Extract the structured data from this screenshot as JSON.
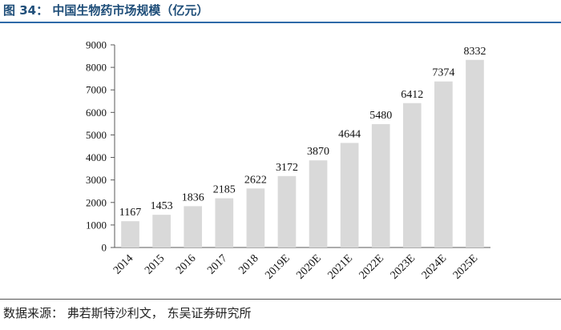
{
  "header": {
    "title": "图 34：  中国生物药市场规模（亿元）"
  },
  "footer": {
    "source": "数据来源：  弗若斯特沙利文， 东吴证券研究所"
  },
  "colors": {
    "bar": "#d9d9d9",
    "title": "#1f4e79",
    "axis": "#595959"
  },
  "chart_data": {
    "type": "bar",
    "title": "中国生物药市场规模（亿元）",
    "categories": [
      "2014",
      "2015",
      "2016",
      "2017",
      "2018",
      "2019E",
      "2020E",
      "2021E",
      "2022E",
      "2023E",
      "2024E",
      "2025E"
    ],
    "values": [
      1167,
      1453,
      1836,
      2185,
      2622,
      3172,
      3870,
      4644,
      5480,
      6412,
      7374,
      8332
    ],
    "yticks": [
      0,
      1000,
      2000,
      3000,
      4000,
      5000,
      6000,
      7000,
      8000,
      9000
    ],
    "ylim": [
      0,
      9000
    ],
    "xlabel": "",
    "ylabel": "",
    "grid": false,
    "legend": "none"
  }
}
